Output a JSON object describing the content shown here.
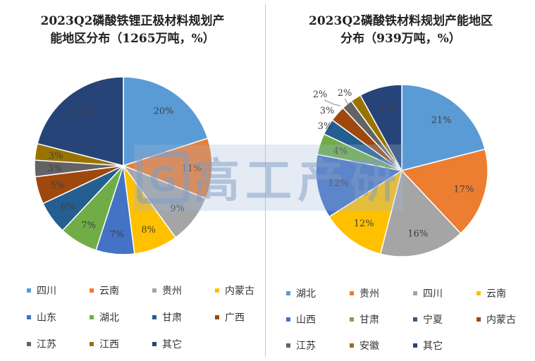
{
  "chart_data": [
    {
      "type": "pie",
      "title": [
        "2023Q2磷酸铁锂正极材料规划产",
        "能地区分布（1265万吨，%）"
      ],
      "categories": [
        "四川",
        "云南",
        "贵州",
        "内蒙古",
        "山东",
        "湖北",
        "甘肃",
        "广西",
        "江苏",
        "江西",
        "其它"
      ],
      "values": [
        20,
        11,
        9,
        8,
        7,
        7,
        6,
        5,
        3,
        3,
        21
      ],
      "labels": [
        "20%",
        "11%",
        "9%",
        "8%",
        "7%",
        "7%",
        "6%",
        "5%",
        "3%",
        "3%",
        "21%"
      ],
      "colors": [
        "#5b9bd5",
        "#ed7d31",
        "#a5a5a5",
        "#ffc000",
        "#4472c4",
        "#70ad47",
        "#255e91",
        "#9e480e",
        "#636363",
        "#997300",
        "#264478"
      ],
      "legend": "bottom"
    },
    {
      "type": "pie",
      "title": [
        "2023Q2磷酸铁材料规划产能地区",
        "分布（939万吨，%）"
      ],
      "categories": [
        "湖北",
        "贵州",
        "四川",
        "云南",
        "山西",
        "甘肃",
        "宁夏",
        "内蒙古",
        "江苏",
        "安徽",
        "其它"
      ],
      "values": [
        21,
        17,
        16,
        12,
        12,
        4,
        3,
        3,
        2,
        2,
        8
      ],
      "labels": [
        "21%",
        "17%",
        "16%",
        "12%",
        "12%",
        "4%",
        "3%",
        "3%",
        "2%",
        "2%",
        "8%"
      ],
      "colors": [
        "#5b9bd5",
        "#ed7d31",
        "#a5a5a5",
        "#ffc000",
        "#4472c4",
        "#70ad47",
        "#255e91",
        "#9e480e",
        "#636363",
        "#997300",
        "#264478"
      ],
      "legend": "bottom"
    }
  ],
  "watermark": {
    "text": "高工产研",
    "logo_letter": "G"
  }
}
